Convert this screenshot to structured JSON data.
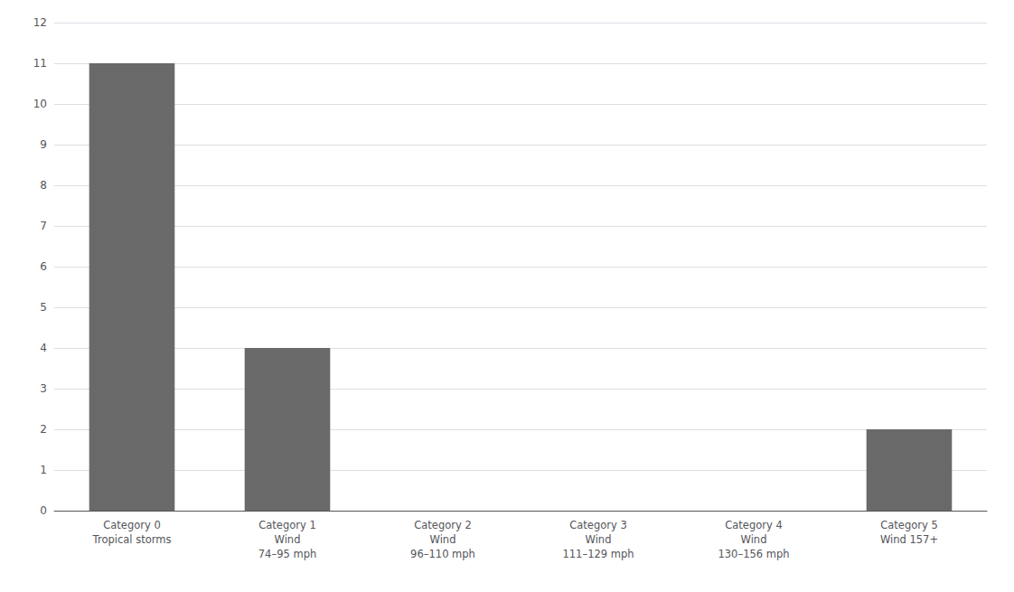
{
  "chart_data": {
    "type": "bar",
    "categories": [
      "Category 0\nTropical storms",
      "Category 1\nWind\n74–95 mph",
      "Category 2\nWind\n96–110 mph",
      "Category 3\nWind\n111–129 mph",
      "Category 4\nWind\n130–156 mph",
      "Category 5\nWind 157+"
    ],
    "values": [
      11,
      4,
      0,
      0,
      0,
      2
    ],
    "color": "#696969",
    "ylim": [
      0,
      12
    ],
    "yticks": [
      0,
      1,
      2,
      3,
      4,
      5,
      6,
      7,
      8,
      9,
      10,
      11,
      12
    ],
    "grid": true
  }
}
